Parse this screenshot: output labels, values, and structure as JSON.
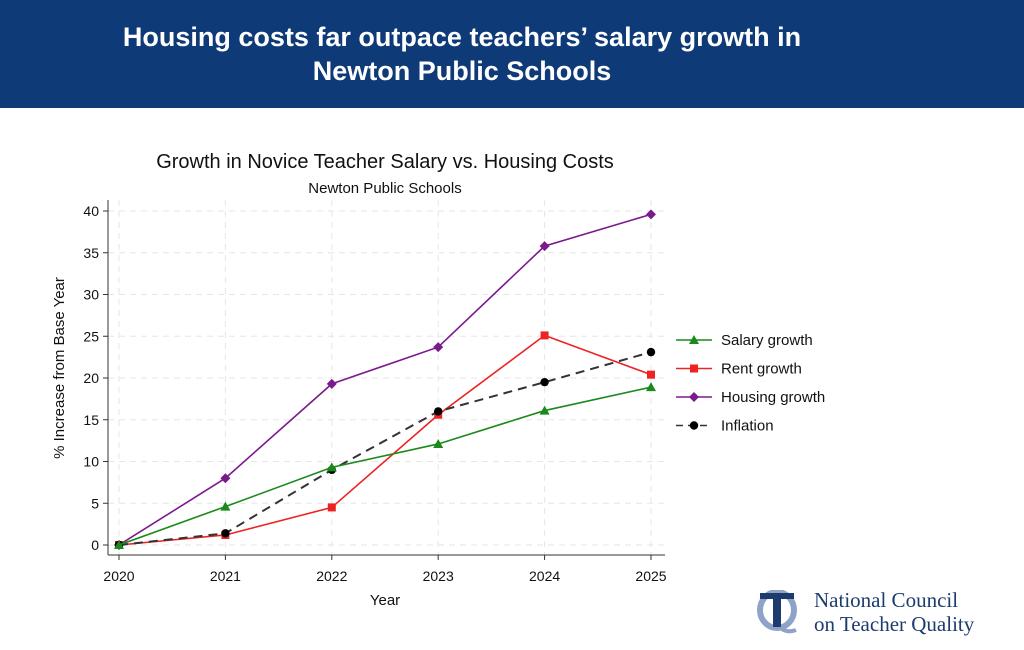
{
  "banner": {
    "line1": "Housing costs far outpace teachers’ salary growth in",
    "line2": "Newton Public Schools"
  },
  "logo": {
    "line1": "National Council",
    "line2": "on Teacher Quality"
  },
  "chart_data": {
    "type": "line",
    "title": "Growth in Novice Teacher Salary vs. Housing Costs",
    "subtitle": "Newton Public Schools",
    "xlabel": "Year",
    "ylabel": "% Increase from Base Year",
    "x": [
      2020,
      2021,
      2022,
      2023,
      2024,
      2025
    ],
    "ylim": [
      0,
      40
    ],
    "yticks": [
      0,
      5,
      10,
      15,
      20,
      25,
      30,
      35,
      40
    ],
    "grid": true,
    "legend": "right",
    "series": [
      {
        "name": "Salary growth",
        "color": "#1a8a1a",
        "marker": "triangle",
        "dash": false,
        "values": [
          0,
          4.6,
          9.3,
          12.1,
          16.1,
          18.9
        ]
      },
      {
        "name": "Rent growth",
        "color": "#ee2222",
        "marker": "square",
        "dash": false,
        "values": [
          0,
          1.2,
          4.5,
          15.6,
          25.1,
          20.4
        ]
      },
      {
        "name": "Housing growth",
        "color": "#7b1a8c",
        "marker": "diamond",
        "dash": false,
        "values": [
          0,
          8.0,
          19.3,
          23.7,
          35.8,
          39.6
        ]
      },
      {
        "name": "Inflation",
        "color": "#000000",
        "marker": "circle",
        "dash": true,
        "values": [
          0,
          1.4,
          9.0,
          16.0,
          19.5,
          23.1
        ]
      }
    ]
  }
}
